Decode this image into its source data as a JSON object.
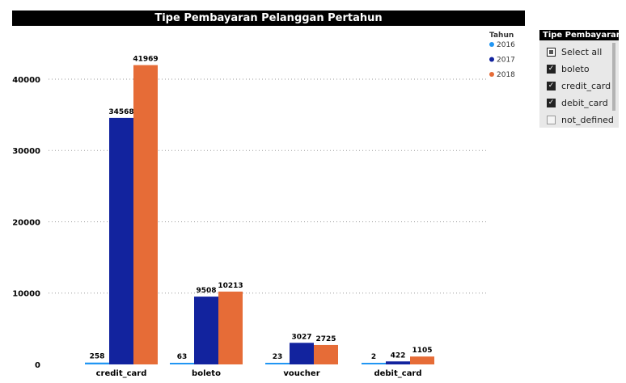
{
  "chart_data": {
    "type": "bar",
    "title": "Tipe Pembayaran Pelanggan Pertahun",
    "categories": [
      "credit_card",
      "boleto",
      "voucher",
      "debit_card"
    ],
    "series": [
      {
        "name": "2016",
        "color": "#2196f3",
        "values": [
          258,
          63,
          23,
          2
        ]
      },
      {
        "name": "2017",
        "color": "#12239e",
        "values": [
          34568,
          9508,
          3027,
          422
        ]
      },
      {
        "name": "2018",
        "color": "#e66c37",
        "values": [
          41969,
          10213,
          2725,
          1105
        ]
      }
    ],
    "ylim": [
      0,
      46000
    ],
    "yticks": [
      0,
      10000,
      20000,
      30000,
      40000
    ],
    "legend_title": "Tahun",
    "legend_position": "top-right",
    "grid": true
  },
  "slicer": {
    "title": "Tipe Pembayaran",
    "items": [
      {
        "label": "Select all",
        "state": "partial"
      },
      {
        "label": "boleto",
        "state": "checked"
      },
      {
        "label": "credit_card",
        "state": "checked"
      },
      {
        "label": "debit_card",
        "state": "checked"
      },
      {
        "label": "not_defined",
        "state": "unchecked"
      }
    ]
  }
}
